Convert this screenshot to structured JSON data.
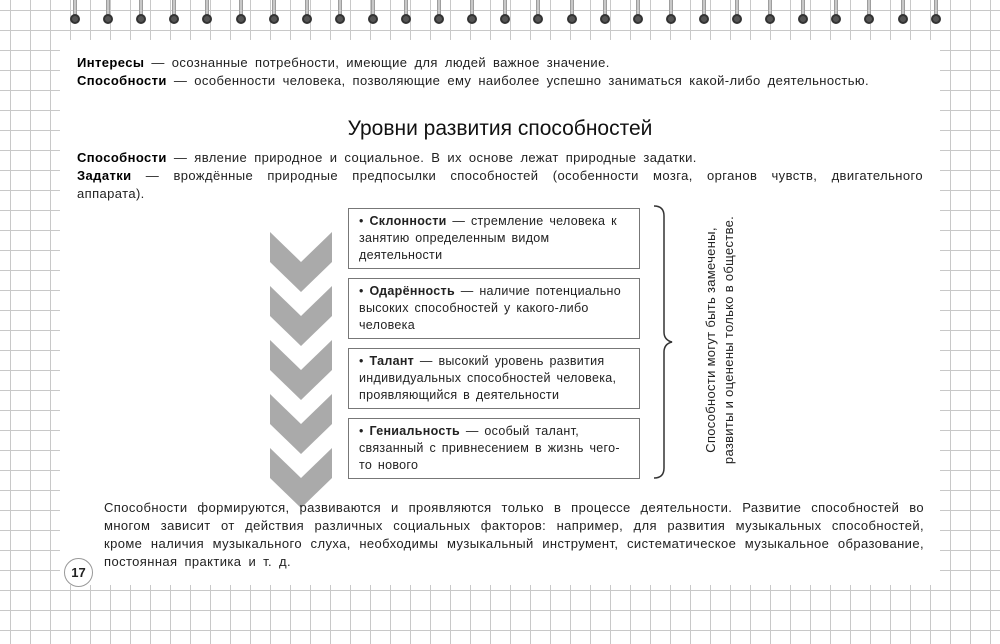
{
  "definitions": [
    {
      "term": "Интересы",
      "text": " — осознанные потребности, имеющие для людей важное значение."
    },
    {
      "term": "Способности",
      "text": " — особенности человека, позволяющие ему наиболее успешно заниматься какой-либо деятельностью."
    }
  ],
  "heading": "Уровни развития способностей",
  "definitions2": [
    {
      "term": "Способности",
      "text": " — явление природное и социальное. В их основе лежат природные задатки."
    },
    {
      "term": "Задатки",
      "text": " — врождённые природные предпосылки способностей (особенности мозга, органов чувств, двигательного аппарата)."
    }
  ],
  "levels": [
    {
      "term": "Склонности",
      "text": " — стремление человека к занятию определенным видом деятельности"
    },
    {
      "term": "Одарённость",
      "text": " — наличие потенциально высоких способностей у какого-либо человека"
    },
    {
      "term": "Талант",
      "text": " — высокий уровень развития индивидуальных способностей человека, проявляющийся в деятельности"
    },
    {
      "term": "Гениальность",
      "text": " — особый талант, связанный с привнесением в жизнь чего-то нового"
    }
  ],
  "brace_note": "Способности могут быть замечены, развиты и оценены только в обществе.",
  "paragraph": "Способности формируются, развиваются и проявляются только в процессе деятельности. Развитие способностей во многом зависит от действия различных социальных факторов: например, для развития музыкальных способностей, кроме наличия музыкального слуха, необходимы музыкальный инструмент, систематическое музыкальное образование, постоянная практика и т. д.",
  "page_number": "17",
  "colors": {
    "chevron": "#aaaaaa",
    "grid": "#c8c8c8"
  }
}
